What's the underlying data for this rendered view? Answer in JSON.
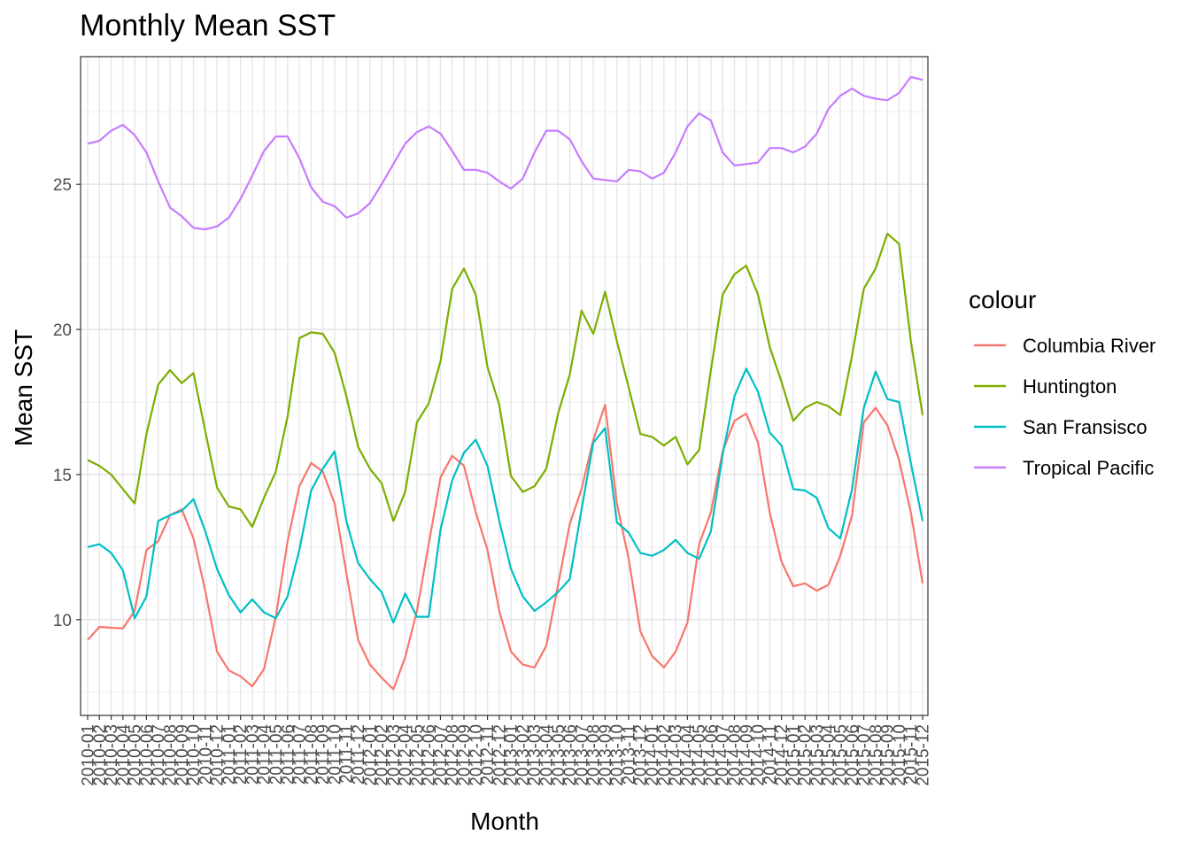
{
  "chart_data": {
    "type": "line",
    "title": "Monthly Mean SST",
    "xlabel": "Month",
    "ylabel": "Mean SST",
    "ylim": [
      6.7,
      29.4
    ],
    "yticks": [
      10,
      15,
      20,
      25
    ],
    "grid": true,
    "legend_title": "colour",
    "legend_position": "right",
    "x": [
      "2010-01",
      "2010-02",
      "2010-03",
      "2010-04",
      "2010-05",
      "2010-06",
      "2010-07",
      "2010-08",
      "2010-09",
      "2010-10",
      "2010-11",
      "2010-12",
      "2011-01",
      "2011-02",
      "2011-03",
      "2011-04",
      "2011-05",
      "2011-06",
      "2011-07",
      "2011-08",
      "2011-09",
      "2011-10",
      "2011-11",
      "2011-12",
      "2012-01",
      "2012-02",
      "2012-03",
      "2012-04",
      "2012-05",
      "2012-06",
      "2012-07",
      "2012-08",
      "2012-09",
      "2012-10",
      "2012-11",
      "2012-12",
      "2013-01",
      "2013-02",
      "2013-03",
      "2013-04",
      "2013-05",
      "2013-06",
      "2013-07",
      "2013-08",
      "2013-09",
      "2013-10",
      "2013-11",
      "2013-12",
      "2014-01",
      "2014-02",
      "2014-03",
      "2014-04",
      "2014-05",
      "2014-06",
      "2014-07",
      "2014-08",
      "2014-09",
      "2014-10",
      "2014-11",
      "2014-12",
      "2015-01",
      "2015-02",
      "2015-03",
      "2015-04",
      "2015-05",
      "2015-06",
      "2015-07",
      "2015-08",
      "2015-09",
      "2015-10",
      "2015-11",
      "2015-12"
    ],
    "series": [
      {
        "name": "Columbia River",
        "color": "#F8766D",
        "values": [
          9.3,
          9.75,
          9.72,
          9.7,
          10.3,
          12.4,
          12.7,
          13.6,
          13.8,
          12.8,
          11.0,
          8.9,
          8.25,
          8.05,
          7.7,
          8.3,
          10.1,
          12.7,
          14.6,
          15.4,
          15.1,
          14.0,
          11.6,
          9.3,
          8.45,
          8.0,
          7.6,
          8.7,
          10.3,
          12.6,
          14.9,
          15.65,
          15.3,
          13.7,
          12.4,
          10.3,
          8.9,
          8.45,
          8.35,
          9.1,
          11.2,
          13.3,
          14.5,
          16.2,
          17.4,
          14.0,
          12.1,
          9.6,
          8.75,
          8.35,
          8.9,
          9.9,
          12.6,
          13.7,
          15.8,
          16.85,
          17.1,
          16.1,
          13.7,
          12.0,
          11.15,
          11.25,
          11.0,
          11.2,
          12.2,
          13.6,
          16.8,
          17.3,
          16.7,
          15.5,
          13.7,
          11.25
        ]
      },
      {
        "name": "Huntington",
        "color": "#7CAE00",
        "values": [
          15.5,
          15.3,
          15.0,
          14.5,
          14.0,
          16.4,
          18.1,
          18.6,
          18.15,
          18.5,
          16.5,
          14.55,
          13.9,
          13.8,
          13.2,
          14.2,
          15.1,
          17.0,
          19.7,
          19.9,
          19.85,
          19.2,
          17.7,
          15.95,
          15.2,
          14.7,
          13.4,
          14.4,
          16.8,
          17.45,
          18.9,
          21.4,
          22.1,
          21.2,
          18.7,
          17.4,
          14.95,
          14.4,
          14.6,
          15.2,
          17.1,
          18.45,
          20.65,
          19.85,
          21.3,
          19.6,
          18.0,
          16.4,
          16.3,
          16.0,
          16.3,
          15.35,
          15.85,
          18.6,
          21.2,
          21.9,
          22.2,
          21.2,
          19.4,
          18.2,
          16.85,
          17.3,
          17.5,
          17.35,
          17.05,
          19.1,
          21.4,
          22.1,
          23.3,
          22.95,
          19.6,
          17.05
        ]
      },
      {
        "name": "San Fransisco",
        "color": "#00BFC4",
        "values": [
          12.5,
          12.6,
          12.3,
          11.7,
          10.05,
          10.8,
          13.4,
          13.6,
          13.75,
          14.15,
          13.05,
          11.75,
          10.85,
          10.25,
          10.7,
          10.25,
          10.05,
          10.8,
          12.4,
          14.45,
          15.2,
          15.8,
          13.4,
          11.95,
          11.4,
          10.95,
          9.9,
          10.9,
          10.1,
          10.1,
          13.1,
          14.8,
          15.75,
          16.2,
          15.3,
          13.4,
          11.75,
          10.8,
          10.3,
          10.6,
          10.95,
          11.4,
          13.8,
          16.1,
          16.6,
          13.35,
          13.0,
          12.3,
          12.2,
          12.4,
          12.75,
          12.3,
          12.1,
          13.05,
          15.7,
          17.7,
          18.65,
          17.85,
          16.45,
          16.0,
          14.5,
          14.45,
          14.2,
          13.15,
          12.8,
          14.5,
          17.3,
          18.55,
          17.6,
          17.5,
          15.4,
          13.4
        ]
      },
      {
        "name": "Tropical Pacific",
        "color": "#C77CFF",
        "values": [
          26.4,
          26.5,
          26.85,
          27.05,
          26.7,
          26.1,
          25.1,
          24.2,
          23.9,
          23.5,
          23.45,
          23.55,
          23.85,
          24.5,
          25.3,
          26.15,
          26.65,
          26.65,
          25.9,
          24.9,
          24.4,
          24.25,
          23.85,
          24.0,
          24.35,
          25.0,
          25.7,
          26.4,
          26.8,
          27.0,
          26.75,
          26.15,
          25.5,
          25.5,
          25.4,
          25.1,
          24.85,
          25.2,
          26.1,
          26.85,
          26.85,
          26.55,
          25.8,
          25.2,
          25.15,
          25.1,
          25.5,
          25.45,
          25.2,
          25.4,
          26.1,
          27.0,
          27.45,
          27.2,
          26.1,
          25.65,
          25.7,
          25.75,
          26.25,
          26.25,
          26.1,
          26.3,
          26.75,
          27.6,
          28.05,
          28.3,
          28.05,
          27.95,
          27.9,
          28.15,
          28.7,
          28.6
        ]
      }
    ]
  }
}
